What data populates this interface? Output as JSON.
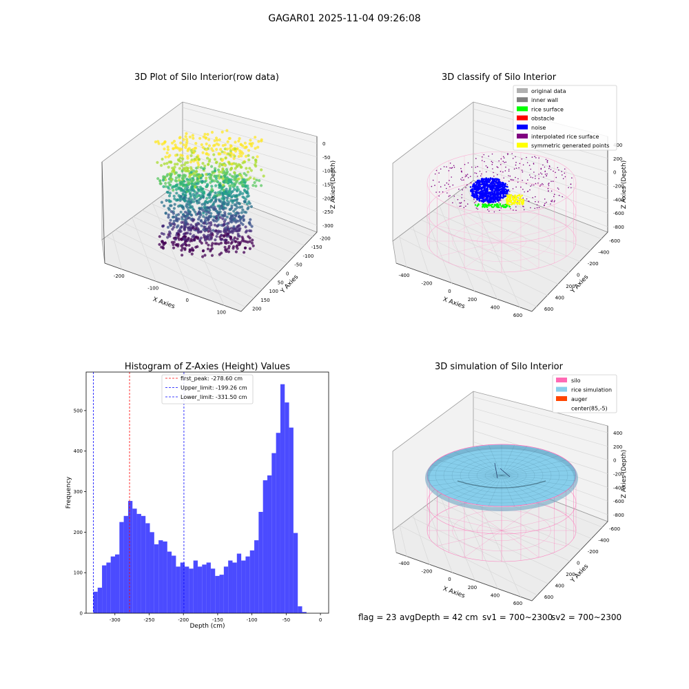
{
  "figure": {
    "suptitle": "GAGAR01 2025-11-04 09:26:08"
  },
  "status": {
    "flag": "flag = 23",
    "avg_depth": "avgDepth = 42 cm",
    "sv1": "sv1 = 700~2300",
    "sv2": "sv2 = 700~2300"
  },
  "chart_data": [
    {
      "type": "scatter",
      "projection": "3d",
      "title": "3D Plot of Silo Interior(row data)",
      "xlabel": "X Axies",
      "ylabel": "Y Axies",
      "zlabel": "Z Axies (Depth)",
      "x_ticks": [
        "-200",
        "-100",
        "0",
        "100"
      ],
      "y_ticks": [
        "200",
        "150",
        "100",
        "50",
        "0",
        "-50",
        "-100",
        "-150",
        "-200"
      ],
      "z_ticks": [
        "0",
        "-50",
        "-100",
        "-150",
        "-200",
        "-250",
        "-300"
      ],
      "colormap": "viridis",
      "xlim": [
        -250,
        150
      ],
      "ylim": [
        -200,
        200
      ],
      "zlim": [
        -340,
        0
      ]
    },
    {
      "type": "scatter",
      "projection": "3d",
      "title": "3D classify of Silo Interior",
      "xlabel": "X Axies",
      "ylabel": "Y Axies",
      "zlabel": "Z Axies (Depth)",
      "x_ticks": [
        "-400",
        "-200",
        "0",
        "200",
        "400",
        "600"
      ],
      "y_ticks": [
        "600",
        "400",
        "200",
        "0",
        "-200",
        "-400",
        "-600"
      ],
      "z_ticks": [
        "400",
        "200",
        "0",
        "-200",
        "-400",
        "-600",
        "-800"
      ],
      "legend_position": "top-right",
      "legend": [
        {
          "label": "original data",
          "color": "#b0b0b0"
        },
        {
          "label": "inner wall",
          "color": "#808080"
        },
        {
          "label": "rice surface",
          "color": "#00ff00"
        },
        {
          "label": "obstacle",
          "color": "#ff0000"
        },
        {
          "label": "noise",
          "color": "#0000ff"
        },
        {
          "label": "interpolated rice surface",
          "color": "#800080"
        },
        {
          "label": "symmetric generated points",
          "color": "#ffff00"
        }
      ]
    },
    {
      "type": "bar",
      "title": "Histogram of Z-Axies (Height) Values",
      "xlabel": "Depth (cm)",
      "ylabel": "Frequency",
      "xlim": [
        -342,
        12
      ],
      "ylim": [
        0,
        595
      ],
      "x_ticks": [
        -300,
        -250,
        -200,
        -150,
        -100,
        -50,
        0
      ],
      "y_ticks": [
        0,
        100,
        200,
        300,
        400,
        500
      ],
      "bin_start": -331.5,
      "bin_width": 6.35,
      "values": [
        53,
        63,
        118,
        125,
        140,
        145,
        225,
        240,
        277,
        258,
        245,
        240,
        222,
        200,
        170,
        180,
        177,
        152,
        142,
        115,
        125,
        115,
        110,
        130,
        115,
        120,
        125,
        110,
        92,
        95,
        115,
        130,
        125,
        147,
        130,
        140,
        155,
        180,
        250,
        328,
        340,
        395,
        445,
        565,
        520,
        458,
        198,
        17,
        3
      ],
      "bar_color": "#4b4bff",
      "vlines": [
        {
          "label": "first_peak: -278.60 cm",
          "x": -278.6,
          "color": "#ff0000"
        },
        {
          "label": "Upper_limit: -199.26 cm",
          "x": -199.26,
          "color": "#0000ff"
        },
        {
          "label": "Lower_limit: -331.50 cm",
          "x": -331.5,
          "color": "#0000ff"
        }
      ],
      "legend_position": "top-center"
    },
    {
      "type": "area",
      "projection": "3d",
      "title": "3D simulation of Silo Interior",
      "xlabel": "X Axies",
      "ylabel": "Y Axies",
      "zlabel": "Z Axies (Depth)",
      "x_ticks": [
        "-400",
        "-200",
        "0",
        "200",
        "400",
        "600"
      ],
      "y_ticks": [
        "600",
        "400",
        "200",
        "0",
        "-200",
        "-400",
        "-600"
      ],
      "z_ticks": [
        "400",
        "200",
        "0",
        "-200",
        "-400",
        "-600",
        "-800"
      ],
      "legend_position": "top-right",
      "legend": [
        {
          "label": "silo",
          "color": "#ff69b4"
        },
        {
          "label": "rice simulation",
          "color": "#87ceeb"
        },
        {
          "label": "auger",
          "color": "#ff4500"
        },
        {
          "label": "center(85,-5)",
          "color": ""
        }
      ]
    }
  ]
}
